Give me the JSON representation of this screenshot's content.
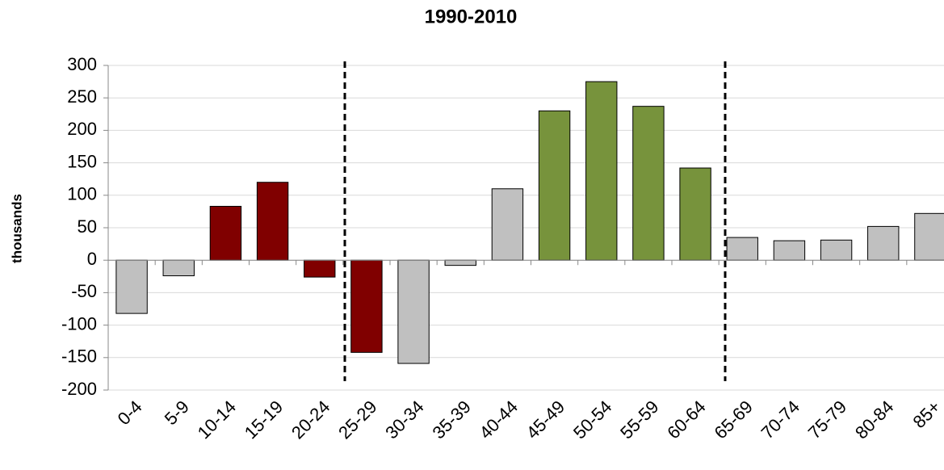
{
  "chart_data": {
    "type": "bar",
    "title": "1990-2010",
    "y_label": "thousands",
    "categories": [
      "0-4",
      "5-9",
      "10-14",
      "15-19",
      "20-24",
      "25-29",
      "30-34",
      "35-39",
      "40-44",
      "45-49",
      "50-54",
      "55-59",
      "60-64",
      "65-69",
      "70-74",
      "75-79",
      "80-84",
      "85+"
    ],
    "values": [
      -82,
      -24,
      83,
      120,
      -26,
      -142,
      -159,
      -8,
      110,
      230,
      275,
      237,
      142,
      35,
      30,
      31,
      52,
      72
    ],
    "colors": [
      "#c0c0c0",
      "#c0c0c0",
      "#800000",
      "#800000",
      "#800000",
      "#800000",
      "#c0c0c0",
      "#c0c0c0",
      "#c0c0c0",
      "#77933c",
      "#77933c",
      "#77933c",
      "#77933c",
      "#c0c0c0",
      "#c0c0c0",
      "#c0c0c0",
      "#c0c0c0",
      "#c0c0c0"
    ],
    "ylim": [
      -200,
      300
    ],
    "yticks": [
      -200,
      -150,
      -100,
      -50,
      0,
      50,
      100,
      150,
      200,
      250,
      300
    ],
    "grid": true
  }
}
